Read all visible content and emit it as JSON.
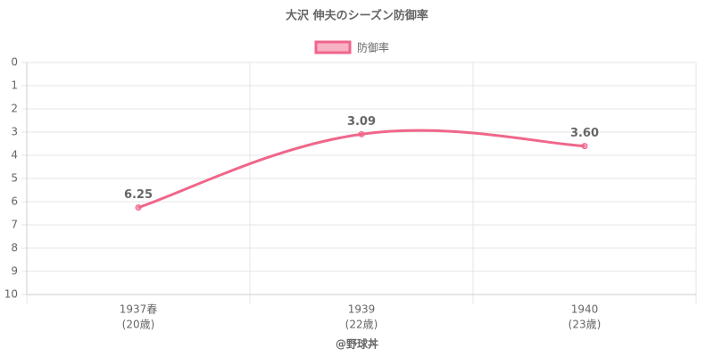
{
  "chart_data": {
    "type": "line",
    "title": "大沢 伸夫のシーズン防御率",
    "categories": [
      [
        "1937春",
        "(20歳)"
      ],
      [
        "1939",
        "(22歳)"
      ],
      [
        "1940",
        "(23歳)"
      ]
    ],
    "series": [
      {
        "name": "防御率",
        "color": "#f0668a",
        "values": [
          6.25,
          3.09,
          3.6
        ],
        "value_labels": [
          "6.25",
          "3.09",
          "3.60"
        ]
      }
    ],
    "ylim": [
      0,
      10
    ],
    "y_reversed": true,
    "yticks": [
      0,
      1,
      2,
      3,
      4,
      5,
      6,
      7,
      8,
      9,
      10
    ],
    "grid": true,
    "legend": "top",
    "footer": "@野球丼"
  }
}
